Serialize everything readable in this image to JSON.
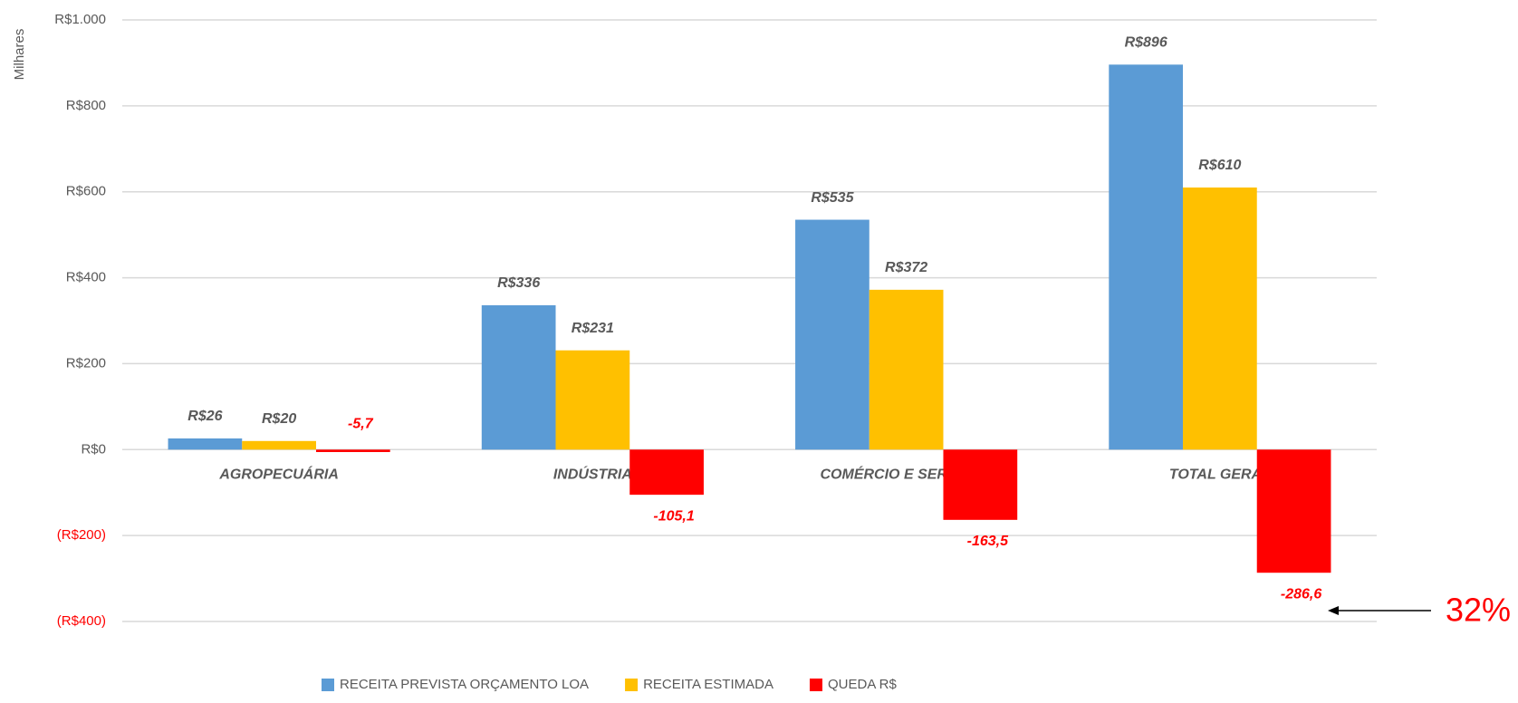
{
  "chart_data": {
    "type": "bar",
    "y_axis_label": "Milhares",
    "categories": [
      "AGROPECUÁRIA",
      "INDÚSTRIA",
      "COMÉRCIO E SERVIÇOS",
      "TOTAL GERAL"
    ],
    "series": [
      {
        "name": "RECEITA PREVISTA ORÇAMENTO LOA",
        "color": "#5b9bd5",
        "values": [
          26,
          336,
          535,
          896
        ],
        "value_labels": [
          "R$26",
          "R$336",
          "R$535",
          "R$896"
        ]
      },
      {
        "name": "RECEITA ESTIMADA",
        "color": "#ffc000",
        "values": [
          20,
          231,
          372,
          610
        ],
        "value_labels": [
          "R$20",
          "R$231",
          "R$372",
          "R$610"
        ]
      },
      {
        "name": "QUEDA R$",
        "color": "#ff0000",
        "values": [
          -5.7,
          -105.1,
          -163.5,
          -286.6
        ],
        "value_labels": [
          "-5,7",
          "-105,1",
          "-163,5",
          "-286,6"
        ]
      }
    ],
    "ylim": [
      -400,
      1000
    ],
    "yticks": [
      {
        "value": -400,
        "label": "(R$400)"
      },
      {
        "value": -200,
        "label": "(R$200)"
      },
      {
        "value": 0,
        "label": "R$0"
      },
      {
        "value": 200,
        "label": "R$200"
      },
      {
        "value": 400,
        "label": "R$400"
      },
      {
        "value": 600,
        "label": "R$600"
      },
      {
        "value": 800,
        "label": "R$800"
      },
      {
        "value": 1000,
        "label": "R$1.000"
      }
    ],
    "grid": true,
    "legend": "bottom",
    "annotation": "32%"
  }
}
